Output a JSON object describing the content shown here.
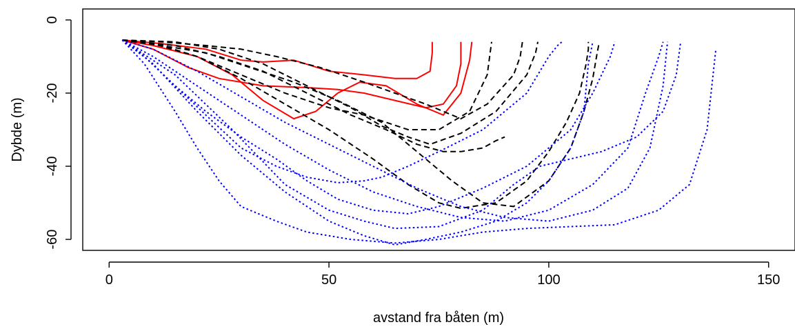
{
  "chart_data": {
    "type": "line",
    "title": "",
    "xlabel": "avstand fra båten (m)",
    "ylabel": "Dybde (m)",
    "xlim": [
      -6,
      156
    ],
    "ylim": [
      -63,
      3
    ],
    "xticks": [
      0,
      50,
      100,
      150
    ],
    "yticks": [
      0,
      -20,
      -40,
      -60
    ],
    "xtick_labels": [
      "0",
      "50",
      "100",
      "150"
    ],
    "ytick_labels": [
      "0",
      "-20",
      "-40",
      "-60"
    ],
    "grid": false,
    "legend": "none",
    "groups": [
      {
        "color": "#ff0000",
        "dash": "solid"
      },
      {
        "color": "#000000",
        "dash": "dashed"
      },
      {
        "color": "#0000ff",
        "dash": "dotted"
      }
    ],
    "series": [
      {
        "group": 0,
        "x": [
          3,
          12,
          22,
          30,
          35,
          42,
          50,
          58,
          65,
          70,
          73,
          73.5,
          73.5
        ],
        "y": [
          -5.5,
          -6.5,
          -8,
          -11,
          -11.5,
          -11,
          -14,
          -15,
          -16,
          -16,
          -14,
          -9,
          -6
        ]
      },
      {
        "group": 0,
        "x": [
          3,
          10,
          18,
          25,
          35,
          45,
          52,
          58,
          65,
          72,
          76,
          79,
          80,
          80
        ],
        "y": [
          -5.5,
          -8,
          -13,
          -16,
          -18,
          -18.5,
          -19,
          -20,
          -22,
          -24,
          -23,
          -18,
          -12,
          -6
        ]
      },
      {
        "group": 0,
        "x": [
          3,
          10,
          20,
          28,
          35,
          42,
          47,
          52,
          57,
          63,
          70,
          76,
          80,
          82,
          82.5
        ],
        "y": [
          -5.5,
          -7,
          -10,
          -15,
          -22,
          -27,
          -25,
          -20,
          -17,
          -18,
          -23,
          -26,
          -20,
          -11,
          -6
        ]
      },
      {
        "group": 1,
        "x": [
          3,
          12,
          22,
          30,
          38,
          48,
          58,
          65,
          72,
          80,
          86,
          92,
          93.5,
          94
        ],
        "y": [
          -5.5,
          -6,
          -7,
          -8,
          -10,
          -13,
          -17,
          -20,
          -23,
          -27,
          -23,
          -15,
          -10,
          -6
        ]
      },
      {
        "group": 1,
        "x": [
          3,
          15,
          25,
          35,
          45,
          55,
          62,
          68,
          73,
          80,
          88,
          95,
          97,
          97.5
        ],
        "y": [
          -5.5,
          -6,
          -8,
          -12,
          -18,
          -24,
          -29,
          -32,
          -34,
          -31,
          -25,
          -15,
          -9,
          -6
        ]
      },
      {
        "group": 1,
        "x": [
          3,
          12,
          20,
          30,
          40,
          50,
          58,
          63,
          68,
          75,
          82,
          86,
          87
        ],
        "y": [
          -5.5,
          -7,
          -10,
          -15,
          -20,
          -24,
          -26,
          -28,
          -30,
          -30,
          -25,
          -15,
          -6
        ]
      },
      {
        "group": 1,
        "x": [
          3,
          15,
          25,
          35,
          45,
          55,
          63,
          70,
          76,
          80,
          85,
          88,
          90
        ],
        "y": [
          -5.5,
          -7,
          -10,
          -14,
          -20,
          -26,
          -30,
          -34,
          -36,
          -36,
          -35,
          -33,
          -32
        ]
      },
      {
        "group": 1,
        "x": [
          3,
          10,
          20,
          30,
          40,
          50,
          60,
          68,
          75,
          80,
          88,
          95,
          100,
          104,
          107,
          108.5,
          109,
          109
        ],
        "y": [
          -5.5,
          -6.5,
          -10,
          -16,
          -23,
          -30,
          -38,
          -45,
          -50,
          -51.5,
          -50,
          -44,
          -36,
          -28,
          -20,
          -12,
          -8,
          -6
        ]
      },
      {
        "group": 1,
        "x": [
          3,
          12,
          22,
          32,
          42,
          52,
          62,
          70,
          78,
          85,
          92,
          100,
          105,
          108,
          110,
          111,
          111.5
        ],
        "y": [
          -5.5,
          -7,
          -9,
          -13,
          -17,
          -22,
          -28,
          -36,
          -44,
          -50,
          -51,
          -44,
          -35,
          -25,
          -16,
          -9,
          -6
        ]
      },
      {
        "group": 2,
        "x": [
          3,
          8,
          15,
          22,
          30,
          38,
          45,
          52,
          58,
          62,
          68,
          75,
          85,
          95,
          100,
          102,
          103
        ],
        "y": [
          -5.5,
          -10,
          -18,
          -26,
          -35,
          -40,
          -43,
          -44.5,
          -44,
          -43,
          -40,
          -36,
          -30,
          -20,
          -10,
          -7,
          -6
        ]
      },
      {
        "group": 2,
        "x": [
          3,
          8,
          15,
          22,
          30,
          38,
          45,
          52,
          60,
          68,
          75,
          85,
          95,
          105,
          110,
          114,
          115
        ],
        "y": [
          -5.5,
          -10,
          -18,
          -25,
          -32,
          -38,
          -44,
          -49,
          -52,
          -53,
          -51,
          -46,
          -40,
          -30,
          -20,
          -10,
          -6
        ]
      },
      {
        "group": 2,
        "x": [
          3,
          10,
          20,
          30,
          40,
          50,
          60,
          70,
          80,
          90,
          100,
          110,
          118,
          122,
          125,
          126
        ],
        "y": [
          -5.5,
          -10,
          -18,
          -26,
          -34,
          -41,
          -47,
          -51,
          -54,
          -55,
          -52,
          -45,
          -35,
          -20,
          -10,
          -6
        ]
      },
      {
        "group": 2,
        "x": [
          3,
          10,
          20,
          30,
          40,
          50,
          60,
          70,
          80,
          90,
          100,
          110,
          118,
          123,
          126,
          127
        ],
        "y": [
          -5.5,
          -8,
          -14,
          -21,
          -28,
          -34,
          -40,
          -46,
          -51,
          -54,
          -55,
          -52,
          -46,
          -35,
          -18,
          -6
        ]
      },
      {
        "group": 2,
        "x": [
          3,
          8,
          15,
          20,
          25,
          30,
          38,
          45,
          55,
          65,
          75,
          85,
          95,
          105,
          115,
          125,
          132,
          136,
          138
        ],
        "y": [
          -5.5,
          -12,
          -25,
          -35,
          -44,
          -51,
          -55,
          -58,
          -60,
          -61,
          -60,
          -58,
          -57,
          -56.5,
          -56,
          -52,
          -45,
          -30,
          -8
        ]
      },
      {
        "group": 2,
        "x": [
          3,
          10,
          20,
          30,
          40,
          50,
          58,
          65,
          72,
          80,
          88,
          95,
          100,
          105,
          108,
          109,
          110
        ],
        "y": [
          -5.5,
          -12,
          -25,
          -37,
          -47,
          -55,
          -59,
          -61.5,
          -60,
          -58,
          -55,
          -50,
          -44,
          -35,
          -25,
          -12,
          -6
        ]
      },
      {
        "group": 2,
        "x": [
          3,
          15,
          28,
          40,
          50,
          58,
          65,
          75,
          85,
          92,
          98,
          105,
          112,
          120,
          126,
          129,
          130
        ],
        "y": [
          -5.5,
          -15,
          -30,
          -45,
          -52,
          -55,
          -57,
          -56.5,
          -52,
          -45,
          -40,
          -38,
          -36,
          -32,
          -25,
          -15,
          -6
        ]
      }
    ]
  }
}
